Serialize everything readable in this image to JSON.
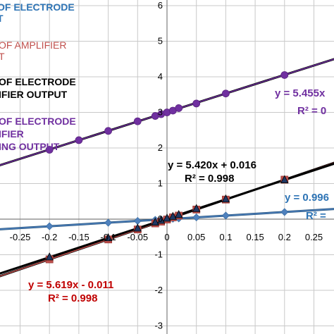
{
  "chart_data": {
    "type": "scatter",
    "xlim": [
      -0.3,
      0.3
    ],
    "ylim": [
      -3,
      6
    ],
    "x_ticks": [
      "-0.25",
      "-0.2",
      "-0.15",
      "-0.1",
      "-0.05",
      "0",
      "0.05",
      "0.1",
      "0.15",
      "0.2",
      "0.25"
    ],
    "y_ticks": [
      "-3",
      "-2",
      "-1",
      "0",
      "1",
      "2",
      "3",
      "4",
      "5",
      "6"
    ],
    "grid": true,
    "legend_lines": [
      "OF ELECTRODE",
      "T",
      "OF AMPLIFIER",
      "T",
      "OF ELECTRODE",
      "IFIER OUTPUT",
      "OF ELECTRODE",
      "IFIER",
      "ING OUTPUT"
    ],
    "series": [
      {
        "marker": "diamond",
        "color": "#4f81bd",
        "x": [
          -0.2,
          -0.1,
          -0.05,
          -0.02,
          -0.01,
          0,
          0.01,
          0.02,
          0.05,
          0.1,
          0.2,
          0.3
        ],
        "y": [
          -0.2,
          -0.1,
          -0.05,
          -0.02,
          -0.01,
          0,
          0.01,
          0.02,
          0.05,
          0.1,
          0.2,
          0.3
        ],
        "fit_label": "y = 0.996",
        "r2_label": "R² ="
      },
      {
        "marker": "square",
        "color": "#c0504d",
        "x": [
          -0.2,
          -0.1,
          -0.05,
          -0.02,
          -0.01,
          0,
          0.01,
          0.02,
          0.05,
          0.1,
          0.2,
          0.3
        ],
        "y": [
          -1.13,
          -0.57,
          -0.29,
          -0.12,
          -0.07,
          -0.01,
          0.05,
          0.1,
          0.27,
          0.55,
          1.11,
          1.67
        ],
        "fit_label": "y = 5.619x - 0.011",
        "r2_label": "R² = 0.998"
      },
      {
        "marker": "triangle",
        "color": "#000000",
        "x": [
          -0.2,
          -0.1,
          -0.05,
          -0.02,
          -0.01,
          0,
          0.01,
          0.02,
          0.05,
          0.1,
          0.2,
          0.3
        ],
        "y": [
          -1.07,
          -0.53,
          -0.26,
          -0.09,
          -0.04,
          0.02,
          0.07,
          0.12,
          0.29,
          0.56,
          1.1,
          1.64
        ],
        "fit_label": "y = 5.420x + 0.016",
        "r2_label": "R² = 0.998"
      },
      {
        "marker": "circle",
        "color": "#7030a0",
        "x": [
          -0.3,
          -0.2,
          -0.15,
          -0.1,
          -0.05,
          -0.02,
          -0.01,
          0,
          0.01,
          0.02,
          0.05,
          0.1,
          0.2,
          0.3
        ],
        "y": [
          1.45,
          1.95,
          2.22,
          2.48,
          2.75,
          2.9,
          2.95,
          3.0,
          3.05,
          3.12,
          3.25,
          3.53,
          4.05,
          4.6
        ],
        "fit_label": "y = 5.455x",
        "r2_label": "R² = 0"
      }
    ]
  }
}
